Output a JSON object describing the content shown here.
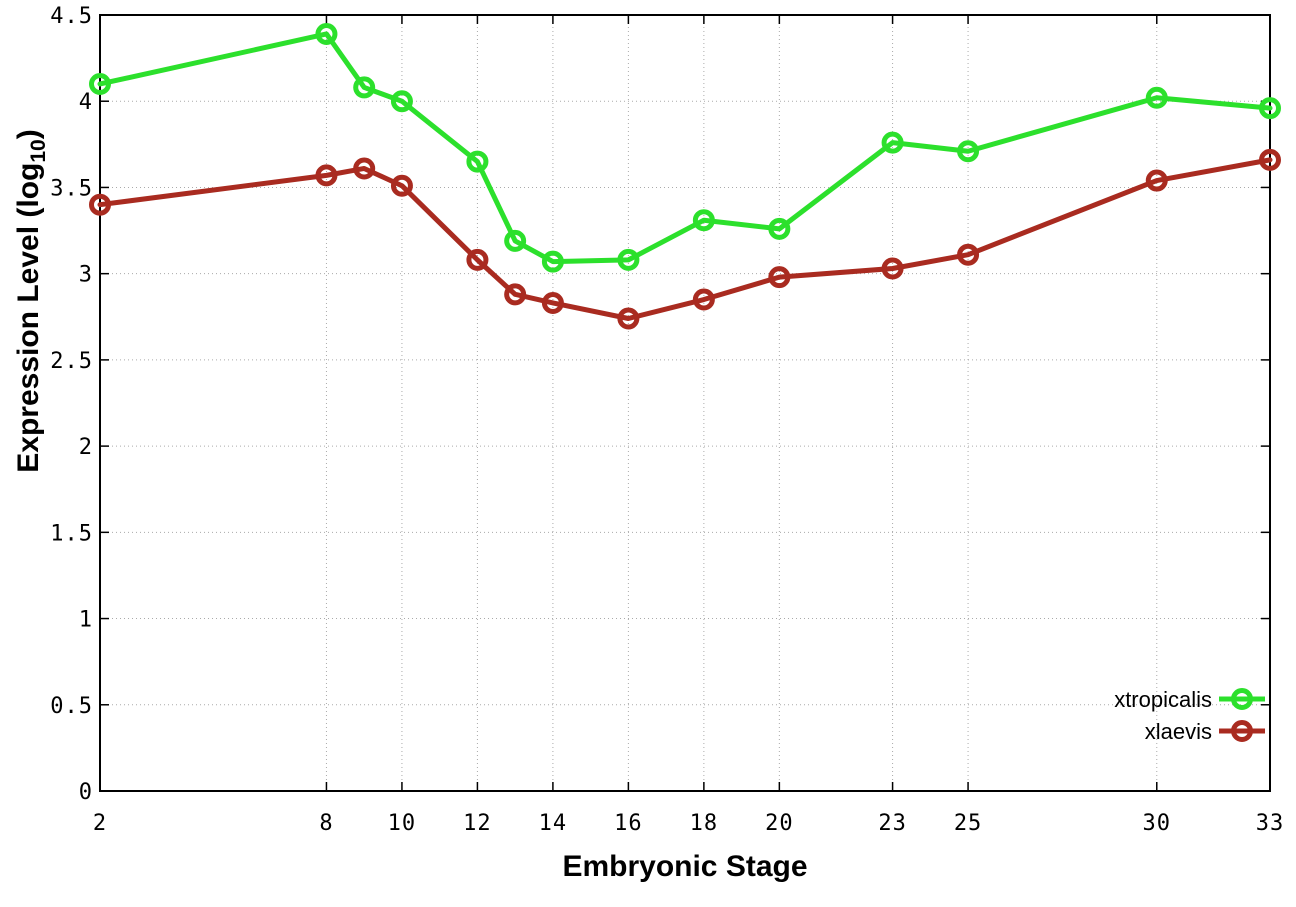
{
  "chart_data": {
    "type": "line",
    "title": "",
    "xlabel": "Embryonic Stage",
    "ylabel": {
      "prefix": "Expression Level (log",
      "sub": "10",
      "suffix": ")"
    },
    "xlim": [
      2,
      33
    ],
    "ylim": [
      0,
      4.5
    ],
    "xticks": [
      2,
      8,
      10,
      12,
      14,
      16,
      18,
      20,
      23,
      25,
      30,
      33
    ],
    "yticks": [
      0,
      0.5,
      1,
      1.5,
      2,
      2.5,
      3,
      3.5,
      4,
      4.5
    ],
    "grid": true,
    "grid_color": "#aaaaaa",
    "border_color": "#000000",
    "legend_position": "bottom-right",
    "x": [
      2,
      8,
      9,
      10,
      12,
      13,
      14,
      16,
      18,
      20,
      23,
      25,
      30,
      33
    ],
    "series": [
      {
        "name": "xtropicalis",
        "color": "#2ce02c",
        "marker": "open-circle",
        "values": [
          4.1,
          4.39,
          4.08,
          4.0,
          3.65,
          3.19,
          3.07,
          3.08,
          3.31,
          3.26,
          3.76,
          3.71,
          4.02,
          3.96
        ]
      },
      {
        "name": "xlaevis",
        "color": "#a92b20",
        "marker": "open-circle",
        "values": [
          3.4,
          3.57,
          3.61,
          3.51,
          3.08,
          2.88,
          2.83,
          2.74,
          2.85,
          2.98,
          3.03,
          3.11,
          3.54,
          3.66
        ]
      }
    ]
  }
}
